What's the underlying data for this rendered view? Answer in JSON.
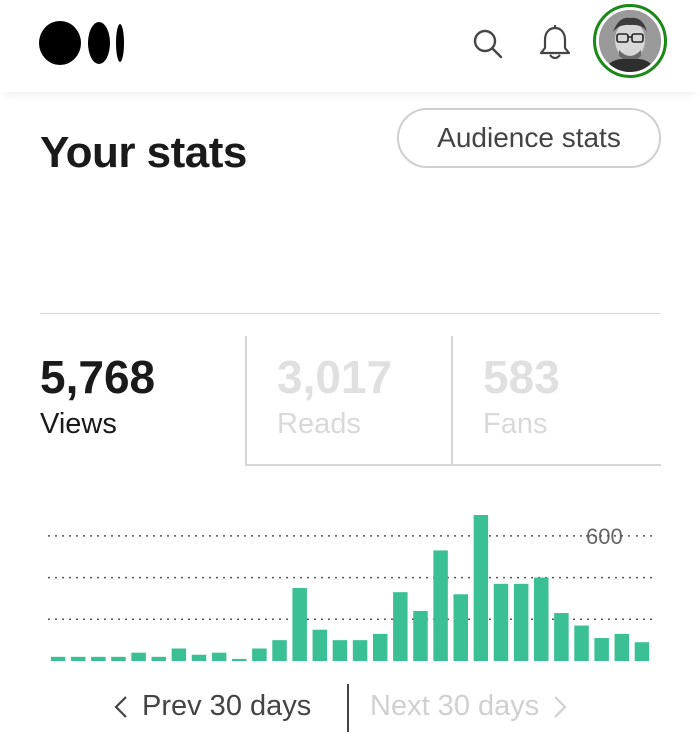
{
  "header": {
    "logo": "medium-logo",
    "icons": [
      "search-icon",
      "bell-icon"
    ]
  },
  "page": {
    "title": "Your stats",
    "audience_button": "Audience stats"
  },
  "stats": [
    {
      "value": "5,768",
      "label": "Views",
      "active": true
    },
    {
      "value": "3,017",
      "label": "Reads",
      "active": false
    },
    {
      "value": "583",
      "label": "Fans",
      "active": false
    }
  ],
  "chart_data": {
    "type": "bar",
    "values": [
      20,
      20,
      20,
      20,
      40,
      20,
      60,
      30,
      40,
      10,
      60,
      100,
      350,
      150,
      100,
      100,
      130,
      330,
      240,
      530,
      320,
      700,
      370,
      370,
      400,
      230,
      170,
      110,
      130,
      90
    ],
    "gridline_label": "600",
    "gridlines": [
      200,
      400,
      600
    ],
    "ylim": [
      0,
      700
    ],
    "bar_color": "#3bbf94"
  },
  "pager": {
    "prev_label": "Prev 30 days",
    "next_label": "Next 30 days",
    "next_enabled": false
  },
  "colors": {
    "accent_green": "#1a8917",
    "bar": "#3bbf94",
    "inactive_text": "#e0e0e0"
  }
}
